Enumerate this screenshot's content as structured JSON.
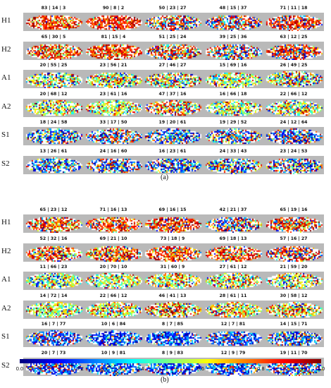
{
  "figure": {
    "panel_a_label": "(a)",
    "panel_b_label": "(b)",
    "colorbar": {
      "ticks": [
        "0.0",
        "0.2",
        "0.4",
        "0.6",
        "0.8",
        "1.0"
      ],
      "colormap": "jet"
    },
    "panels": [
      {
        "id": "a",
        "rows": [
          {
            "label": "H1",
            "captions": [
              "83 | 14 | 3",
              "90 | 8 | 2",
              "50 | 23 | 27",
              "48 | 15 | 37",
              "71 | 11 | 18"
            ]
          },
          {
            "label": "H2",
            "captions": [
              "65 | 30 | 5",
              "81 | 15 | 4",
              "51 | 25 | 24",
              "39 | 25 | 36",
              "63 | 12 | 25"
            ]
          },
          {
            "label": "A1",
            "captions": [
              "20 | 55 | 25",
              "23 | 56 | 21",
              "27 | 46 | 27",
              "15 | 69 | 16",
              "26 | 49 | 25"
            ]
          },
          {
            "label": "A2",
            "captions": [
              "20 | 68 | 12",
              "23 | 61 | 16",
              "47 | 37 | 16",
              "16 | 66 | 18",
              "22 | 66 | 12"
            ]
          },
          {
            "label": "S1",
            "captions": [
              "18 | 24 | 58",
              "33 | 17 | 50",
              "19 | 20 | 61",
              "19 | 29 | 52",
              "24 | 12 | 64"
            ]
          },
          {
            "label": "S2",
            "captions": [
              "13 | 26 | 61",
              "24 | 16 | 60",
              "16 | 23 | 61",
              "24 | 33 | 43",
              "23 | 24 | 53"
            ]
          }
        ]
      },
      {
        "id": "b",
        "rows": [
          {
            "label": "H1",
            "captions": [
              "65 | 23 | 12",
              "71 | 16 | 13",
              "69 | 16 | 15",
              "42 | 21 | 37",
              "65 | 19 | 16"
            ]
          },
          {
            "label": "H2",
            "captions": [
              "52 | 32 | 16",
              "69 | 21 | 10",
              "73 | 18 | 9",
              "69 | 18 | 13",
              "57 | 16 | 27"
            ]
          },
          {
            "label": "A1",
            "captions": [
              "11 | 66 | 23",
              "20 | 70 | 10",
              "31 | 60 | 9",
              "27 | 61 | 12",
              "21 | 59 | 20"
            ]
          },
          {
            "label": "A2",
            "captions": [
              "14 | 72 | 14",
              "22 | 66 | 12",
              "46 | 41 | 13",
              "28 | 61 | 11",
              "30 | 58 | 12"
            ]
          },
          {
            "label": "S1",
            "captions": [
              "16 | 7 | 77",
              "10 | 6 | 84",
              "8 | 7 | 85",
              "12 | 7 | 81",
              "14 | 15 | 71"
            ]
          },
          {
            "label": "S2",
            "captions": [
              "20 | 7 | 73",
              "10 | 9 | 81",
              "8 | 9 | 83",
              "12 | 9 | 79",
              "19 | 11 | 70"
            ]
          }
        ]
      }
    ]
  }
}
